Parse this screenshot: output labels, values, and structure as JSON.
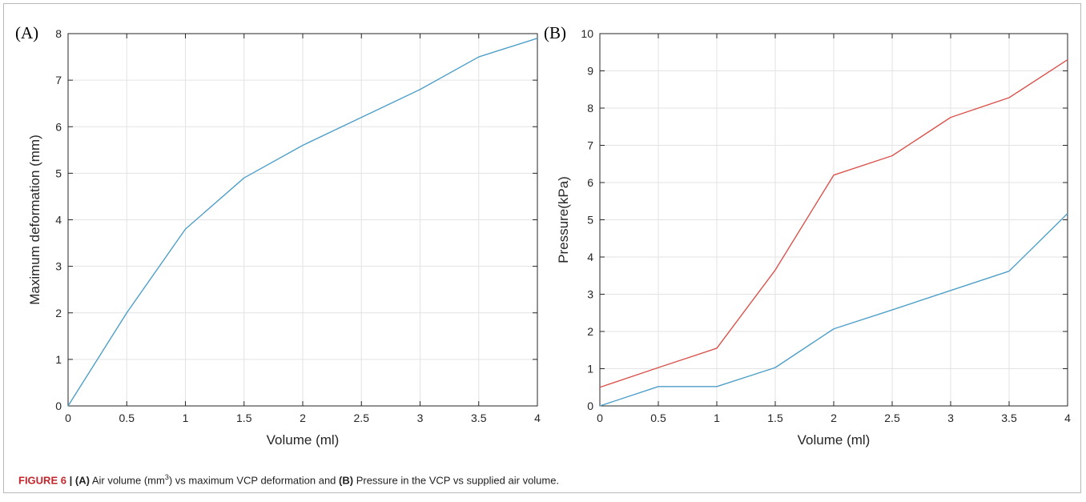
{
  "caption": {
    "figure_number": "FIGURE 6",
    "separator": "|",
    "label_a": "(A)",
    "text_a_before": "Air volume (mm",
    "text_a_sup": "3",
    "text_a_after": ") vs maximum VCP deformation and",
    "label_b": "(B)",
    "text_b": "Pressure in the VCP vs supplied air volume."
  },
  "colors": {
    "blue_series": "#4f9fc9",
    "red_series": "#d9544d",
    "grid": "#e3e3e3",
    "axis": "#262626"
  },
  "chart_data": [
    {
      "type": "line",
      "panel_label": "(A)",
      "xlabel": "Volume (ml)",
      "ylabel": "Maximum deformation (mm)",
      "xlim": [
        0,
        4
      ],
      "ylim": [
        0,
        8
      ],
      "xticks": [
        0,
        0.5,
        1,
        1.5,
        2,
        2.5,
        3,
        3.5,
        4
      ],
      "yticks": [
        0,
        1,
        2,
        3,
        4,
        5,
        6,
        7,
        8
      ],
      "grid": true,
      "x": [
        0,
        0.5,
        1,
        1.5,
        2,
        2.5,
        3,
        3.5,
        4
      ],
      "series": [
        {
          "values": [
            0,
            2.0,
            3.8,
            4.9,
            5.6,
            6.2,
            6.8,
            7.5,
            7.9
          ],
          "color": "#4f9fc9"
        }
      ]
    },
    {
      "type": "line",
      "panel_label": "(B)",
      "xlabel": "Volume (ml)",
      "ylabel": "Pressure(kPa)",
      "xlim": [
        0,
        4
      ],
      "ylim": [
        0,
        10
      ],
      "xticks": [
        0,
        0.5,
        1,
        1.5,
        2,
        2.5,
        3,
        3.5,
        4
      ],
      "yticks": [
        0,
        1,
        2,
        3,
        4,
        5,
        6,
        7,
        8,
        9,
        10
      ],
      "grid": true,
      "x": [
        0,
        0.5,
        1,
        1.5,
        2,
        2.5,
        3,
        3.5,
        4
      ],
      "series": [
        {
          "values": [
            0.5,
            1.03,
            1.55,
            3.65,
            6.2,
            6.72,
            7.75,
            8.28,
            9.3
          ],
          "color": "#d9544d"
        },
        {
          "values": [
            0,
            0.52,
            0.52,
            1.03,
            2.07,
            2.58,
            3.1,
            3.62,
            5.17
          ],
          "color": "#4f9fc9"
        }
      ]
    }
  ]
}
